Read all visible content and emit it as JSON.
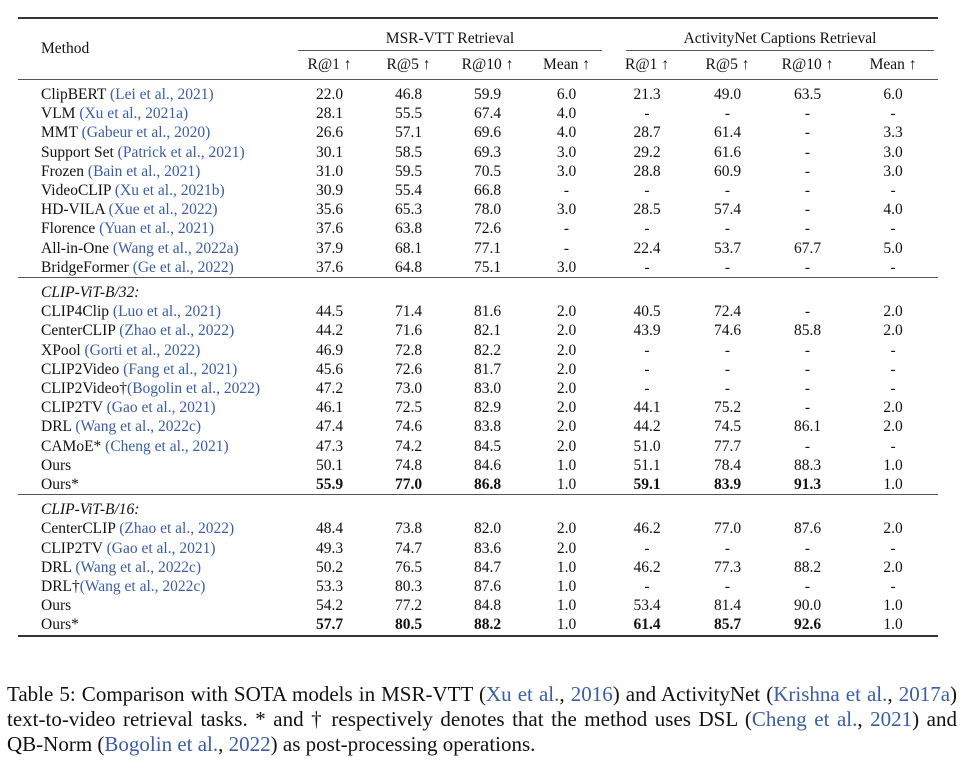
{
  "header": {
    "method": "Method",
    "msr_group": "MSR-VTT Retrieval",
    "anet_group": "ActivityNet Captions Retrieval",
    "cols": [
      "R@1 ↑",
      "R@5 ↑",
      "R@10 ↑",
      "Mean ↑",
      "R@1 ↑",
      "R@5 ↑",
      "R@10 ↑",
      "Mean ↑"
    ]
  },
  "groups": [
    {
      "label": "",
      "rows": [
        {
          "method": "ClipBERT ",
          "cite": "(Lei et al., 2021)",
          "values": [
            "22.0",
            "46.8",
            "59.9",
            "6.0",
            "21.3",
            "49.0",
            "63.5",
            "6.0"
          ],
          "bold": []
        },
        {
          "method": "VLM ",
          "cite": "(Xu et al., 2021a)",
          "values": [
            "28.1",
            "55.5",
            "67.4",
            "4.0",
            "-",
            "-",
            "-",
            "-"
          ],
          "bold": []
        },
        {
          "method": "MMT ",
          "cite": "(Gabeur et al., 2020)",
          "values": [
            "26.6",
            "57.1",
            "69.6",
            "4.0",
            "28.7",
            "61.4",
            "-",
            "3.3"
          ],
          "bold": []
        },
        {
          "method": "Support Set ",
          "cite": "(Patrick et al., 2021)",
          "values": [
            "30.1",
            "58.5",
            "69.3",
            "3.0",
            "29.2",
            "61.6",
            "-",
            "3.0"
          ],
          "bold": []
        },
        {
          "method": "Frozen ",
          "cite": "(Bain et al., 2021)",
          "values": [
            "31.0",
            "59.5",
            "70.5",
            "3.0",
            "28.8",
            "60.9",
            "-",
            "3.0"
          ],
          "bold": []
        },
        {
          "method": "VideoCLIP ",
          "cite": "(Xu et al., 2021b)",
          "values": [
            "30.9",
            "55.4",
            "66.8",
            "-",
            "-",
            "-",
            "-",
            "-"
          ],
          "bold": []
        },
        {
          "method": "HD-VILA ",
          "cite": "(Xue et al., 2022)",
          "values": [
            "35.6",
            "65.3",
            "78.0",
            "3.0",
            "28.5",
            "57.4",
            "-",
            "4.0"
          ],
          "bold": []
        },
        {
          "method": "Florence ",
          "cite": "(Yuan et al., 2021)",
          "values": [
            "37.6",
            "63.8",
            "72.6",
            "-",
            "-",
            "-",
            "-",
            "-"
          ],
          "bold": []
        },
        {
          "method": "All-in-One ",
          "cite": "(Wang et al., 2022a)",
          "values": [
            "37.9",
            "68.1",
            "77.1",
            "-",
            "22.4",
            "53.7",
            "67.7",
            "5.0"
          ],
          "bold": []
        },
        {
          "method": "BridgeFormer ",
          "cite": "(Ge et al., 2022)",
          "values": [
            "37.6",
            "64.8",
            "75.1",
            "3.0",
            "-",
            "-",
            "-",
            "-"
          ],
          "bold": []
        }
      ]
    },
    {
      "label": "CLIP-ViT-B/32:",
      "rows": [
        {
          "method": "CLIP4Clip ",
          "cite": "(Luo et al., 2021)",
          "values": [
            "44.5",
            "71.4",
            "81.6",
            "2.0",
            "40.5",
            "72.4",
            "-",
            "2.0"
          ],
          "bold": []
        },
        {
          "method": "CenterCLIP ",
          "cite": "(Zhao et al., 2022)",
          "values": [
            "44.2",
            "71.6",
            "82.1",
            "2.0",
            "43.9",
            "74.6",
            "85.8",
            "2.0"
          ],
          "bold": []
        },
        {
          "method": "XPool ",
          "cite": "(Gorti et al., 2022)",
          "values": [
            "46.9",
            "72.8",
            "82.2",
            "2.0",
            "-",
            "-",
            "-",
            "-"
          ],
          "bold": []
        },
        {
          "method": "CLIP2Video ",
          "cite": "(Fang et al., 2021)",
          "values": [
            "45.6",
            "72.6",
            "81.7",
            "2.0",
            "-",
            "-",
            "-",
            "-"
          ],
          "bold": []
        },
        {
          "method": "CLIP2Video†",
          "cite": "(Bogolin et al., 2022)",
          "values": [
            "47.2",
            "73.0",
            "83.0",
            "2.0",
            "-",
            "-",
            "-",
            "-"
          ],
          "bold": []
        },
        {
          "method": "CLIP2TV ",
          "cite": "(Gao et al., 2021)",
          "values": [
            "46.1",
            "72.5",
            "82.9",
            "2.0",
            "44.1",
            "75.2",
            "-",
            "2.0"
          ],
          "bold": []
        },
        {
          "method": "DRL ",
          "cite": "(Wang et al., 2022c)",
          "values": [
            "47.4",
            "74.6",
            "83.8",
            "2.0",
            "44.2",
            "74.5",
            "86.1",
            "2.0"
          ],
          "bold": []
        },
        {
          "method": "CAMoE* ",
          "cite": "(Cheng et al., 2021)",
          "values": [
            "47.3",
            "74.2",
            "84.5",
            "2.0",
            "51.0",
            "77.7",
            "-",
            "-"
          ],
          "bold": []
        },
        {
          "method": "Ours",
          "cite": "",
          "values": [
            "50.1",
            "74.8",
            "84.6",
            "1.0",
            "51.1",
            "78.4",
            "88.3",
            "1.0"
          ],
          "bold": []
        },
        {
          "method": "Ours*",
          "cite": "",
          "values": [
            "55.9",
            "77.0",
            "86.8",
            "1.0",
            "59.1",
            "83.9",
            "91.3",
            "1.0"
          ],
          "bold": [
            0,
            1,
            2,
            4,
            5,
            6
          ]
        }
      ]
    },
    {
      "label": "CLIP-ViT-B/16:",
      "rows": [
        {
          "method": "CenterCLIP ",
          "cite": "(Zhao et al., 2022)",
          "values": [
            "48.4",
            "73.8",
            "82.0",
            "2.0",
            "46.2",
            "77.0",
            "87.6",
            "2.0"
          ],
          "bold": []
        },
        {
          "method": "CLIP2TV ",
          "cite": "(Gao et al., 2021)",
          "values": [
            "49.3",
            "74.7",
            "83.6",
            "2.0",
            "-",
            "-",
            "-",
            "-"
          ],
          "bold": []
        },
        {
          "method": "DRL ",
          "cite": "(Wang et al., 2022c)",
          "values": [
            "50.2",
            "76.5",
            "84.7",
            "1.0",
            "46.2",
            "77.3",
            "88.2",
            "2.0"
          ],
          "bold": []
        },
        {
          "method": "DRL†",
          "cite": "(Wang et al., 2022c)",
          "values": [
            "53.3",
            "80.3",
            "87.6",
            "1.0",
            "-",
            "-",
            "-",
            "-"
          ],
          "bold": []
        },
        {
          "method": "Ours",
          "cite": "",
          "values": [
            "54.2",
            "77.2",
            "84.8",
            "1.0",
            "53.4",
            "81.4",
            "90.0",
            "1.0"
          ],
          "bold": []
        },
        {
          "method": "Ours*",
          "cite": "",
          "values": [
            "57.7",
            "80.5",
            "88.2",
            "1.0",
            "61.4",
            "85.7",
            "92.6",
            "1.0"
          ],
          "bold": [
            0,
            1,
            2,
            4,
            5,
            6
          ]
        }
      ]
    }
  ],
  "caption": [
    {
      "t": "Table 5: Comparison with SOTA models in MSR-VTT (",
      "c": false
    },
    {
      "t": "Xu et al.",
      "c": true
    },
    {
      "t": ", ",
      "c": false
    },
    {
      "t": "2016",
      "c": true
    },
    {
      "t": ") and ActivityNet (",
      "c": false
    },
    {
      "t": "Krishna et al.",
      "c": true
    },
    {
      "t": ", ",
      "c": false
    },
    {
      "t": "2017a",
      "c": true
    },
    {
      "t": ") text-to-video retrieval tasks. * and † respectively denotes that the method uses DSL (",
      "c": false
    },
    {
      "t": "Cheng et al.",
      "c": true
    },
    {
      "t": ", ",
      "c": false
    },
    {
      "t": "2021",
      "c": true
    },
    {
      "t": ") and QB-Norm (",
      "c": false
    },
    {
      "t": "Bogolin et al.",
      "c": true
    },
    {
      "t": ", ",
      "c": false
    },
    {
      "t": "2022",
      "c": true
    },
    {
      "t": ") as post-processing operations.",
      "c": false
    }
  ]
}
